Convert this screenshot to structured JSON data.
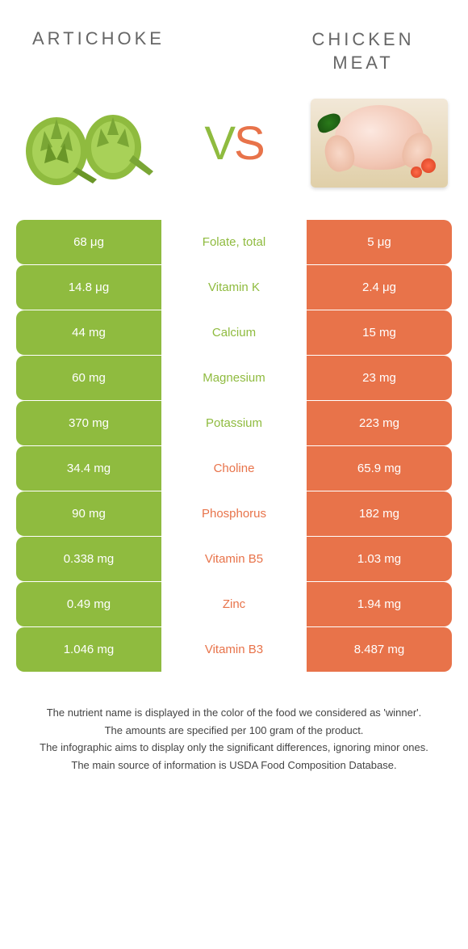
{
  "header": {
    "left": "ARTICHOKE",
    "right": "CHICKEN MEAT"
  },
  "vs": {
    "v": "V",
    "s": "S"
  },
  "colors": {
    "green": "#8fbb3f",
    "orange": "#e8734a",
    "white": "#ffffff"
  },
  "rows": [
    {
      "left": "68 μg",
      "mid": "Folate, total",
      "right": "5 μg",
      "winner": "green"
    },
    {
      "left": "14.8 μg",
      "mid": "Vitamin K",
      "right": "2.4 μg",
      "winner": "green"
    },
    {
      "left": "44 mg",
      "mid": "Calcium",
      "right": "15 mg",
      "winner": "green"
    },
    {
      "left": "60 mg",
      "mid": "Magnesium",
      "right": "23 mg",
      "winner": "green"
    },
    {
      "left": "370 mg",
      "mid": "Potassium",
      "right": "223 mg",
      "winner": "green"
    },
    {
      "left": "34.4 mg",
      "mid": "Choline",
      "right": "65.9 mg",
      "winner": "orange"
    },
    {
      "left": "90 mg",
      "mid": "Phosphorus",
      "right": "182 mg",
      "winner": "orange"
    },
    {
      "left": "0.338 mg",
      "mid": "Vitamin B5",
      "right": "1.03 mg",
      "winner": "orange"
    },
    {
      "left": "0.49 mg",
      "mid": "Zinc",
      "right": "1.94 mg",
      "winner": "orange"
    },
    {
      "left": "1.046 mg",
      "mid": "Vitamin B3",
      "right": "8.487 mg",
      "winner": "orange"
    }
  ],
  "footer": {
    "line1": "The nutrient name is displayed in the color of the food we considered as 'winner'.",
    "line2": "The amounts are specified per 100 gram of the product.",
    "line3": "The infographic aims to display only the significant differences, ignoring minor ones.",
    "line4": "The main source of information is USDA Food Composition Database."
  }
}
